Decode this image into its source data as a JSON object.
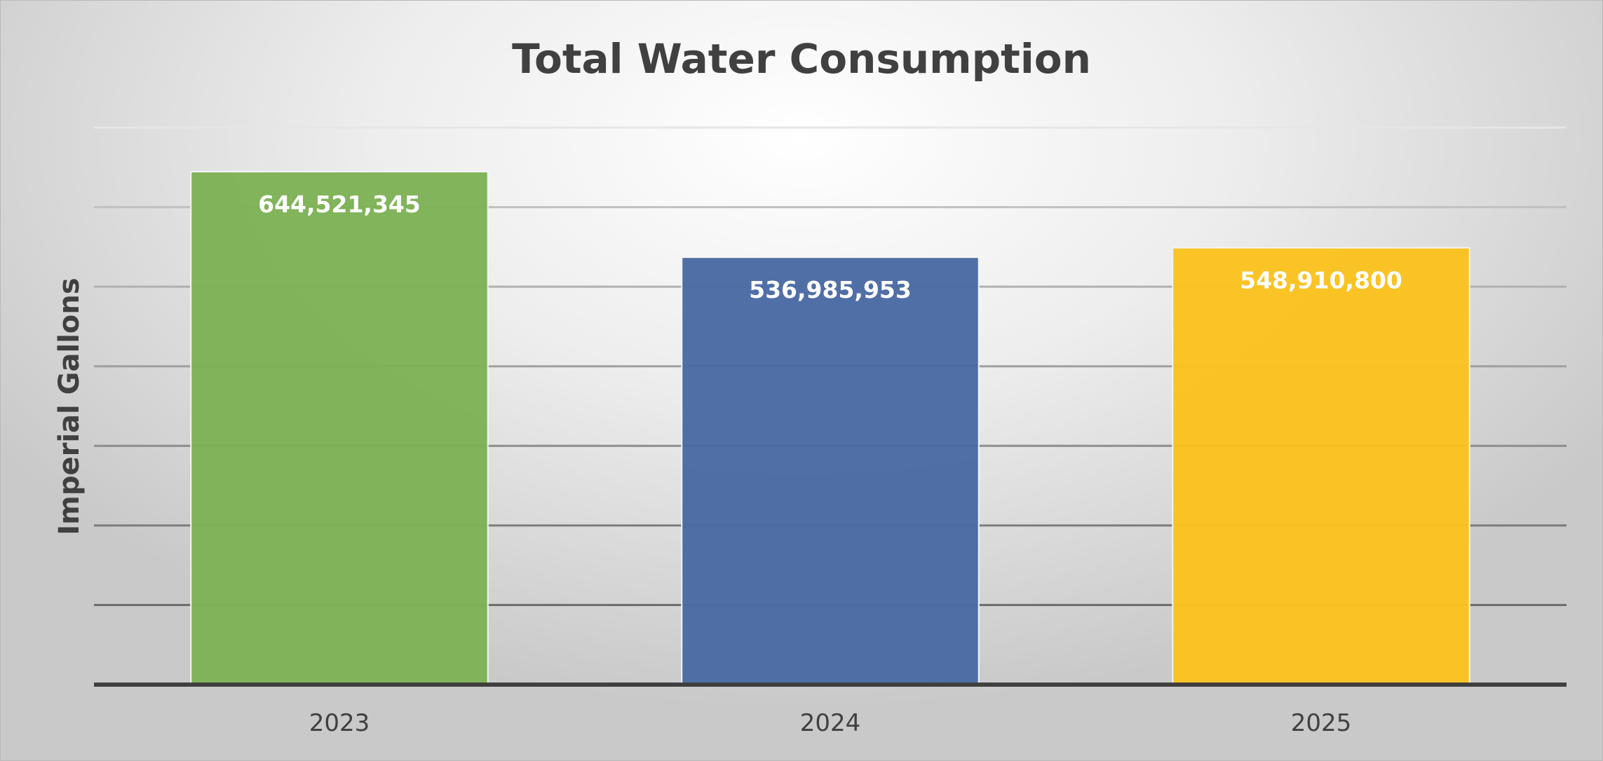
{
  "chart_data": {
    "type": "bar",
    "title": "Total Water Consumption",
    "xlabel": "",
    "ylabel": "Imperial Gallons",
    "categories": [
      "2023",
      "2024",
      "2025"
    ],
    "values": [
      644521345,
      536985953,
      548910800
    ],
    "data_labels": [
      "644,521,345",
      "536,985,953",
      "548,910,800"
    ],
    "colors": [
      "#7db256",
      "#4a6aa4",
      "#fbc21f"
    ],
    "ylim": [
      0,
      700000000
    ],
    "gridline_step": 100000000,
    "grid": true,
    "legend": "none",
    "y_tick_labels_shown": false
  }
}
